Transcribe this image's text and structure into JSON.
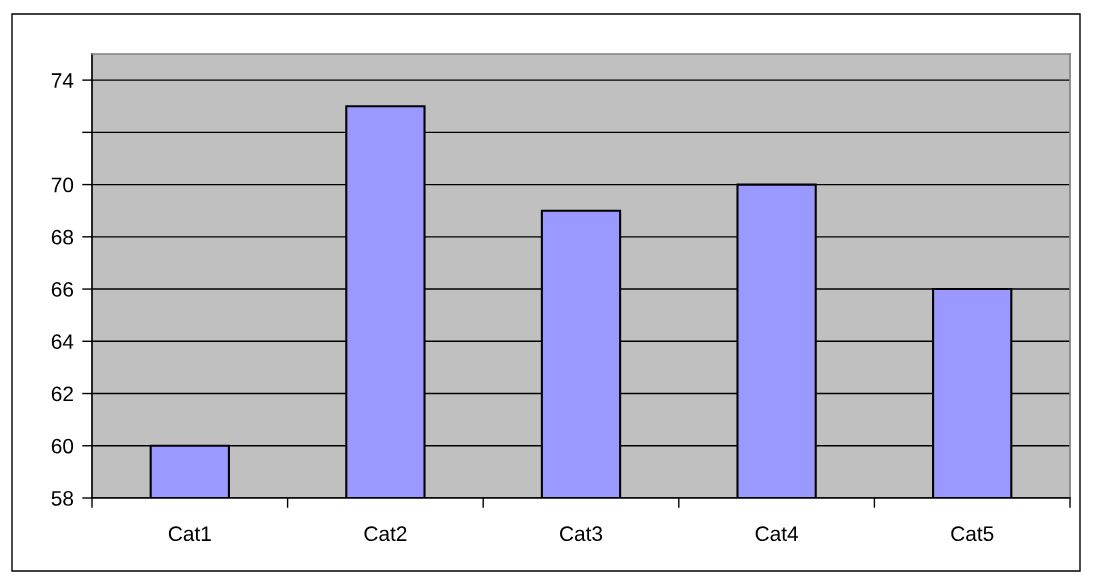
{
  "chart_data": {
    "type": "bar",
    "categories": [
      "Cat1",
      "Cat2",
      "Cat3",
      "Cat4",
      "Cat5"
    ],
    "values": [
      60,
      73,
      69,
      70,
      66
    ],
    "color": "#9999ff",
    "ylim": [
      58,
      75
    ],
    "yticks": [
      58,
      60,
      62,
      64,
      66,
      68,
      70,
      {
        "value": 72,
        "label": null
      },
      74
    ],
    "grid": "y"
  }
}
